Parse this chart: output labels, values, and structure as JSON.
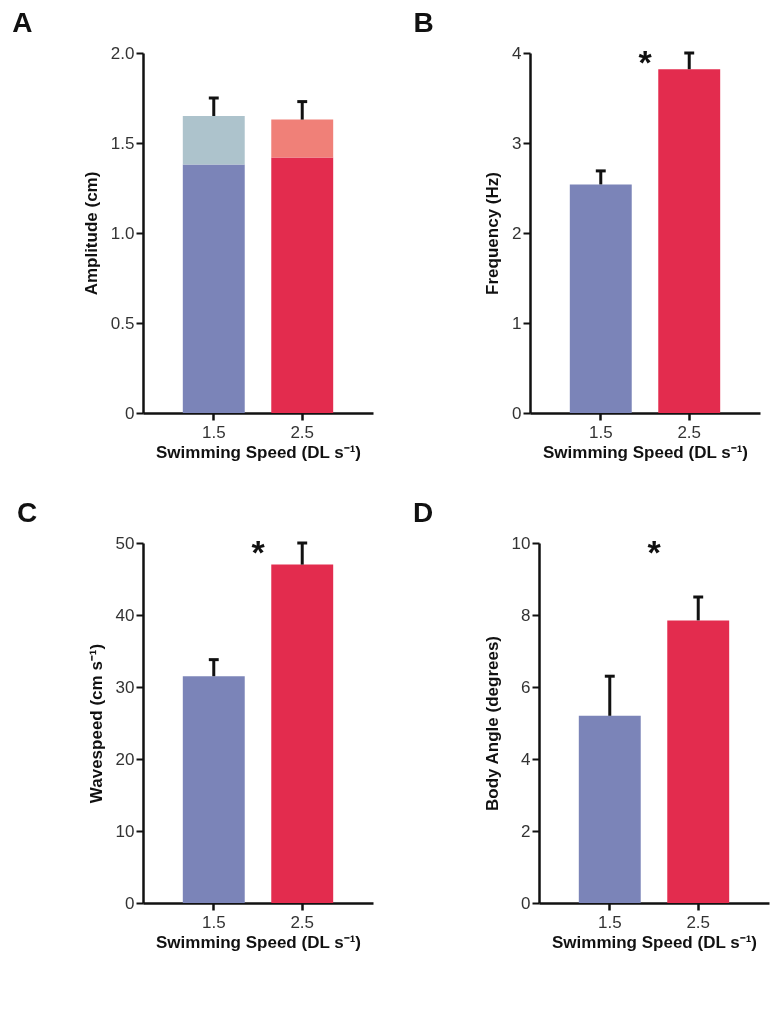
{
  "chart_data": [
    {
      "type": "bar",
      "title": "A",
      "stacked": true,
      "categories": [
        "1.5",
        "2.5"
      ],
      "xlabel": "Swimming Speed (DL s⁻¹)",
      "ylabel": "Amplitude (cm)",
      "ylim": [
        0,
        2.0
      ],
      "yticks": [
        0,
        {
          "value": 0.5,
          "label": "0.5"
        },
        {
          "value": 1,
          "label": "1.0"
        },
        {
          "value": 1.5,
          "label": "1.5"
        },
        {
          "value": 2,
          "label": "2.0"
        }
      ],
      "series": [
        {
          "colors": [
            "#7b84b8",
            "#e32c4e"
          ],
          "values": [
            1.38,
            1.42
          ]
        },
        {
          "colors": [
            "#adc3cc",
            "#f08078"
          ],
          "values": [
            0.27,
            0.21
          ],
          "errors": [
            [
              1.65,
              1.75
            ],
            [
              1.63,
              1.73
            ]
          ]
        }
      ]
    },
    {
      "type": "bar",
      "title": "B",
      "categories": [
        "1.5",
        "2.5"
      ],
      "xlabel": "Swimming Speed (DL s⁻¹)",
      "ylabel": "Frequency (Hz)",
      "ylim": [
        0,
        4
      ],
      "yticks": [
        0,
        1,
        2,
        3,
        4
      ],
      "annotations": [
        "*"
      ],
      "series": [
        {
          "colors": [
            "#7b84b8",
            "#e32c4e"
          ],
          "values": [
            2.54,
            3.82
          ],
          "errors": [
            [
              2.54,
              2.69
            ],
            [
              3.82,
              4.0
            ]
          ]
        }
      ]
    },
    {
      "type": "bar",
      "title": "C",
      "categories": [
        "1.5",
        "2.5"
      ],
      "xlabel": "Swimming Speed (DL s⁻¹)",
      "ylabel": "Wavespeed (cm s⁻¹)",
      "ylim": [
        0,
        50
      ],
      "yticks": [
        0,
        10,
        20,
        30,
        40,
        50
      ],
      "annotations": [
        "*"
      ],
      "series": [
        {
          "colors": [
            "#7b84b8",
            "#e32c4e"
          ],
          "values": [
            31.5,
            47.0
          ],
          "errors": [
            [
              31.5,
              33.8
            ],
            [
              47.0,
              50.0
            ]
          ]
        }
      ]
    },
    {
      "type": "bar",
      "title": "D",
      "categories": [
        "1.5",
        "2.5"
      ],
      "xlabel": "Swimming Speed (DL s⁻¹)",
      "ylabel": "Body Angle (degrees)",
      "ylim": [
        0,
        10
      ],
      "yticks": [
        0,
        2,
        4,
        6,
        8,
        10
      ],
      "annotations": [
        "*"
      ],
      "series": [
        {
          "colors": [
            "#7b84b8",
            "#e32c4e"
          ],
          "values": [
            5.2,
            7.85
          ],
          "errors": [
            [
              5.2,
              6.3
            ],
            [
              7.85,
              8.5
            ]
          ]
        }
      ]
    }
  ]
}
